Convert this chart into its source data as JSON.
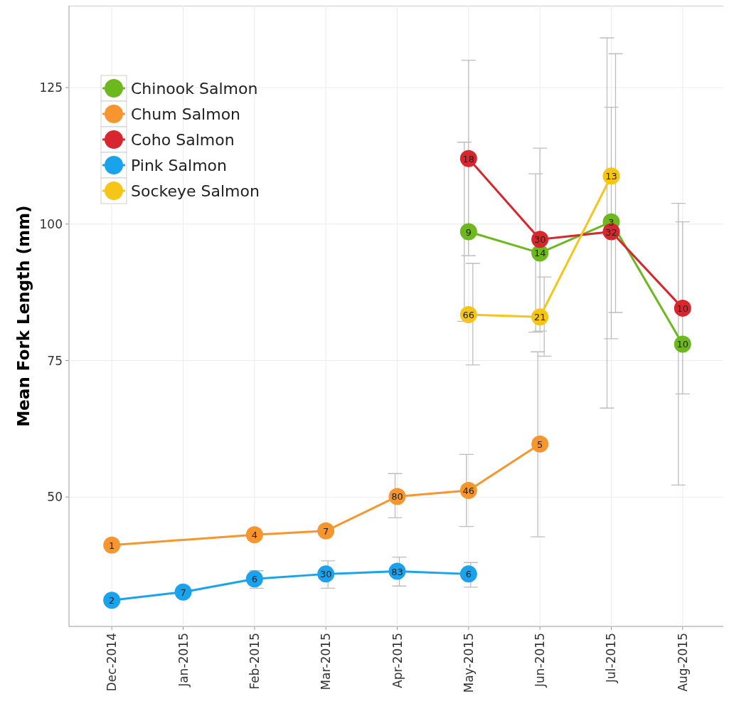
{
  "chart_data": {
    "type": "line",
    "ylabel": "Mean Fork Length (mm)",
    "categories": [
      "Dec-2014",
      "Jan-2015",
      "Feb-2015",
      "Mar-2015",
      "Apr-2015",
      "May-2015",
      "Jun-2015",
      "Jul-2015",
      "Aug-2015"
    ],
    "ylim": [
      26.3,
      140
    ],
    "yticks": [
      50,
      75,
      100,
      125
    ],
    "grid": true,
    "legend": "top left",
    "marker": "circle",
    "series": [
      {
        "name": "Chinook Salmon",
        "color": "#6cb81e",
        "values": [
          null,
          null,
          null,
          null,
          null,
          98.6,
          94.7,
          100.4,
          78.0
        ],
        "errors": [
          null,
          null,
          null,
          null,
          null,
          [
            82.2,
            115
          ],
          [
            80.2,
            109.2
          ],
          [
            66.3,
            134.1
          ],
          [
            52.2,
            103.8
          ]
        ]
      },
      {
        "name": "Chum Salmon",
        "color": "#f7962e",
        "values": [
          41.2,
          null,
          43.1,
          43.8,
          50.1,
          51.2,
          59.7,
          null,
          null
        ],
        "errors": [
          null,
          null,
          null,
          null,
          [
            46.2,
            54.3
          ],
          [
            44.6,
            57.8
          ],
          [
            42.7,
            76.6
          ],
          null,
          null
        ]
      },
      {
        "name": "Coho Salmon",
        "color": "#d7262e",
        "values": [
          null,
          null,
          null,
          null,
          null,
          112.0,
          97.2,
          98.6,
          84.6
        ],
        "errors": [
          null,
          null,
          null,
          null,
          null,
          [
            94.2,
            130
          ],
          [
            80.4,
            113.9
          ],
          [
            79.0,
            121.4
          ],
          [
            68.9,
            100.4
          ]
        ]
      },
      {
        "name": "Pink Salmon",
        "color": "#1aa3ec",
        "values": [
          31.1,
          32.6,
          35.0,
          35.9,
          36.4,
          35.9,
          null,
          null,
          null
        ],
        "errors": [
          null,
          null,
          [
            33.3,
            36.5
          ],
          [
            33.3,
            38.3
          ],
          [
            33.7,
            39.0
          ],
          [
            33.5,
            38.0
          ],
          null,
          null,
          null
        ]
      },
      {
        "name": "Sockeye Salmon",
        "color": "#f5c518",
        "values": [
          null,
          null,
          null,
          null,
          null,
          83.4,
          83.0,
          108.8,
          null
        ],
        "errors": [
          null,
          null,
          null,
          null,
          null,
          [
            74.2,
            92.8
          ],
          [
            75.8,
            90.3
          ],
          [
            83.8,
            131.2
          ],
          null
        ]
      }
    ],
    "annotations": [
      {
        "text": "9",
        "x": "May-2015",
        "y": 98.6
      },
      {
        "text": "14",
        "x": "Jun-2015",
        "y": 94.7
      },
      {
        "text": "3",
        "x": "Jul-2015",
        "y": 100.4
      },
      {
        "text": "10",
        "x": "Aug-2015",
        "y": 78.0
      },
      {
        "text": "1",
        "x": "Dec-2014",
        "y": 41.2
      },
      {
        "text": "4",
        "x": "Feb-2015",
        "y": 43.1
      },
      {
        "text": "7",
        "x": "Mar-2015",
        "y": 43.8
      },
      {
        "text": "80",
        "x": "Apr-2015",
        "y": 50.1
      },
      {
        "text": "46",
        "x": "May-2015",
        "y": 51.2
      },
      {
        "text": "5",
        "x": "Jun-2015",
        "y": 59.7
      },
      {
        "text": "18",
        "x": "May-2015",
        "y": 112.0
      },
      {
        "text": "30",
        "x": "Jun-2015",
        "y": 97.2
      },
      {
        "text": "32",
        "x": "Jul-2015",
        "y": 98.6
      },
      {
        "text": "10",
        "x": "Aug-2015",
        "y": 84.6
      },
      {
        "text": "2",
        "x": "Dec-2014",
        "y": 31.1
      },
      {
        "text": "7",
        "x": "Jan-2015",
        "y": 32.6
      },
      {
        "text": "6",
        "x": "Feb-2015",
        "y": 35.0
      },
      {
        "text": "30",
        "x": "Mar-2015",
        "y": 35.9
      },
      {
        "text": "83",
        "x": "Apr-2015",
        "y": 36.4
      },
      {
        "text": "6",
        "x": "May-2015",
        "y": 35.9
      },
      {
        "text": "66",
        "x": "May-2015",
        "y": 83.4
      },
      {
        "text": "21",
        "x": "Jun-2015",
        "y": 83.0
      },
      {
        "text": "13",
        "x": "Jul-2015",
        "y": 108.8
      }
    ]
  }
}
